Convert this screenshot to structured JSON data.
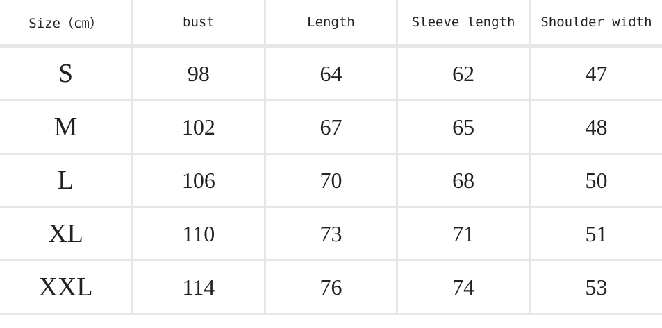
{
  "table": {
    "header": [
      "Size（cm）",
      "bust",
      "Length",
      "Sleeve length",
      "Shoulder width"
    ],
    "rows": [
      [
        "S",
        98,
        64,
        62,
        47
      ],
      [
        "M",
        102,
        67,
        65,
        48
      ],
      [
        "L",
        106,
        70,
        68,
        50
      ],
      [
        "XL",
        110,
        73,
        71,
        51
      ],
      [
        "XXL",
        114,
        76,
        74,
        53
      ]
    ]
  }
}
